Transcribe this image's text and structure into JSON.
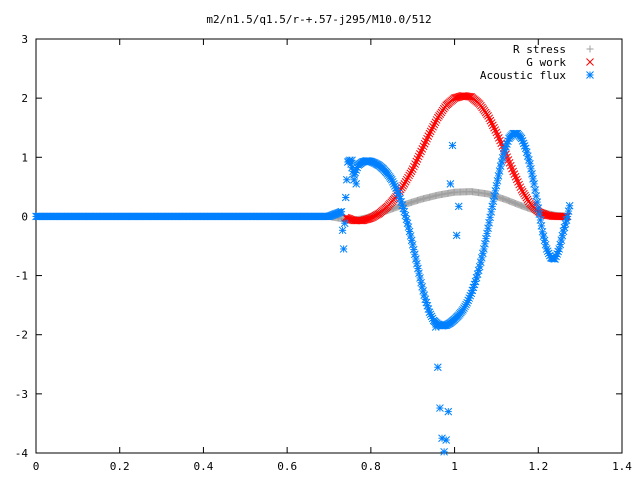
{
  "chart_data": {
    "type": "scatter",
    "title": "m2/n1.5/q1.5/r-+.57-j295/M10.0/512",
    "xlabel": "",
    "ylabel": "",
    "xlim": [
      0,
      1.4
    ],
    "ylim": [
      -4,
      3
    ],
    "x_ticks": [
      0,
      0.2,
      0.4,
      0.6,
      0.8,
      1.0,
      1.2,
      1.4
    ],
    "x_tick_labels": [
      "0",
      "0.2",
      "0.4",
      "0.6",
      "0.8",
      "1",
      "1.2",
      "1.4"
    ],
    "y_ticks": [
      -4,
      -3,
      -2,
      -1,
      0,
      1,
      2,
      3
    ],
    "y_tick_labels": [
      "-4",
      "-3",
      "-2",
      "-1",
      "0",
      "1",
      "2",
      "3"
    ],
    "grid": false,
    "legend_position": "top-right",
    "series": [
      {
        "name": "R stress",
        "marker": "plus",
        "color": "#a0a0a0",
        "x": [
          0.0,
          0.1,
          0.2,
          0.3,
          0.4,
          0.5,
          0.6,
          0.7,
          0.74,
          0.76,
          0.78,
          0.8,
          0.84,
          0.88,
          0.92,
          0.96,
          1.0,
          1.04,
          1.08,
          1.12,
          1.16,
          1.2,
          1.24,
          1.27
        ],
        "y": [
          0.0,
          0.0,
          0.0,
          0.0,
          0.0,
          0.0,
          0.0,
          0.0,
          -0.05,
          -0.06,
          -0.04,
          0.0,
          0.1,
          0.2,
          0.29,
          0.36,
          0.41,
          0.42,
          0.38,
          0.29,
          0.18,
          0.08,
          0.02,
          0.0
        ]
      },
      {
        "name": "G work",
        "marker": "cross",
        "color": "#ff0000",
        "x": [
          0.74,
          0.76,
          0.78,
          0.8,
          0.82,
          0.84,
          0.86,
          0.88,
          0.9,
          0.92,
          0.94,
          0.96,
          0.98,
          1.0,
          1.02,
          1.04,
          1.06,
          1.08,
          1.1,
          1.12,
          1.14,
          1.16,
          1.18,
          1.2,
          1.22,
          1.24,
          1.26,
          1.27
        ],
        "y": [
          -0.02,
          -0.07,
          -0.07,
          -0.03,
          0.05,
          0.17,
          0.33,
          0.55,
          0.8,
          1.1,
          1.4,
          1.67,
          1.88,
          2.0,
          2.04,
          2.02,
          1.9,
          1.7,
          1.42,
          1.1,
          0.76,
          0.45,
          0.22,
          0.08,
          0.02,
          0.0,
          0.0,
          0.0
        ]
      },
      {
        "name": "Acoustic flux",
        "marker": "star",
        "color": "#0080ff",
        "x": [
          0.0,
          0.1,
          0.2,
          0.3,
          0.4,
          0.5,
          0.6,
          0.7,
          0.73,
          0.735,
          0.74,
          0.745,
          0.75,
          0.76,
          0.77,
          0.78,
          0.79,
          0.8,
          0.81,
          0.82,
          0.83,
          0.84,
          0.85,
          0.86,
          0.87,
          0.88,
          0.89,
          0.9,
          0.91,
          0.92,
          0.93,
          0.94,
          0.95,
          0.96,
          0.97,
          0.98,
          0.99,
          1.0,
          1.01,
          1.02,
          1.03,
          1.04,
          1.05,
          1.06,
          1.07,
          1.08,
          1.09,
          1.1,
          1.11,
          1.12,
          1.13,
          1.14,
          1.15,
          1.16,
          1.17,
          1.18,
          1.19,
          1.2,
          1.21,
          1.22,
          1.23,
          1.24,
          1.25,
          1.26,
          1.27,
          1.275,
          0.755,
          0.76,
          0.765,
          0.955,
          0.96,
          0.965,
          0.97,
          0.975,
          0.98,
          0.985,
          0.99,
          0.995,
          1.005,
          1.01
        ],
        "y": [
          0.0,
          0.0,
          0.0,
          0.0,
          0.0,
          0.0,
          0.0,
          0.0,
          0.08,
          -0.55,
          0.32,
          0.92,
          0.95,
          0.7,
          0.87,
          0.92,
          0.94,
          0.93,
          0.9,
          0.86,
          0.8,
          0.72,
          0.62,
          0.48,
          0.3,
          0.08,
          -0.18,
          -0.48,
          -0.8,
          -1.12,
          -1.4,
          -1.62,
          -1.76,
          -1.82,
          -1.85,
          -1.84,
          -1.8,
          -1.74,
          -1.67,
          -1.58,
          -1.46,
          -1.3,
          -1.1,
          -0.85,
          -0.55,
          -0.2,
          0.17,
          0.52,
          0.85,
          1.13,
          1.32,
          1.4,
          1.4,
          1.32,
          1.15,
          0.89,
          0.55,
          0.14,
          -0.26,
          -0.55,
          -0.7,
          -0.72,
          -0.55,
          -0.25,
          0.0,
          0.18,
          0.95,
          0.62,
          0.55,
          -1.87,
          -2.55,
          -3.24,
          -3.75,
          -3.98,
          -3.78,
          -3.3,
          0.55,
          1.2,
          -0.32,
          0.17
        ]
      }
    ]
  }
}
